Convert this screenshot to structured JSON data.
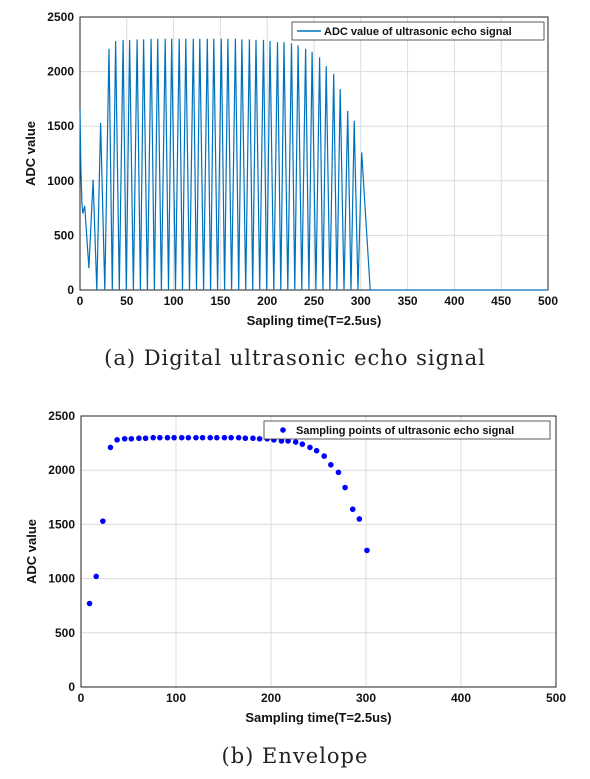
{
  "chart_data": [
    {
      "type": "line",
      "caption": "(a) Digital ultrasonic echo signal",
      "xlabel": "Sapling time(T=2.5us)",
      "ylabel": "ADC value",
      "xlim": [
        0,
        500
      ],
      "ylim": [
        0,
        2500
      ],
      "xticks": [
        0,
        50,
        100,
        150,
        200,
        250,
        300,
        350,
        400,
        450,
        500
      ],
      "yticks": [
        0,
        500,
        1000,
        1500,
        2000,
        2500
      ],
      "grid": true,
      "legend_position": "top-right",
      "series": [
        {
          "name": "ADC value of ultrasonic echo signal",
          "color": "#0072BD",
          "peaks_x": [
            5,
            14,
            22,
            31,
            38,
            46,
            53,
            61,
            68,
            76,
            83,
            91,
            98,
            106,
            113,
            121,
            128,
            136,
            143,
            151,
            158,
            166,
            173,
            181,
            188,
            196,
            203,
            211,
            218,
            226,
            233,
            241,
            248,
            256,
            263,
            271,
            278,
            286,
            293,
            301
          ],
          "peaks_y": [
            770,
            1010,
            1530,
            2210,
            2280,
            2290,
            2290,
            2295,
            2295,
            2300,
            2300,
            2300,
            2300,
            2300,
            2300,
            2300,
            2300,
            2300,
            2300,
            2300,
            2300,
            2300,
            2295,
            2295,
            2290,
            2290,
            2280,
            2270,
            2270,
            2260,
            2240,
            2210,
            2180,
            2130,
            2050,
            1980,
            1840,
            1640,
            1550,
            1260
          ],
          "end_x": 310
        }
      ]
    },
    {
      "type": "scatter",
      "caption": "(b) Envelope",
      "xlabel": "Sampling time(T=2.5us)",
      "ylabel": "ADC value",
      "xlim": [
        0,
        500
      ],
      "ylim": [
        0,
        2500
      ],
      "xticks": [
        0,
        100,
        200,
        300,
        400,
        500
      ],
      "yticks": [
        0,
        500,
        1000,
        1500,
        2000,
        2500
      ],
      "grid": true,
      "legend_position": "top-right",
      "series": [
        {
          "name": "Sampling points of ultrasonic echo signal",
          "color": "#0000FF",
          "x": [
            9,
            16,
            23,
            31,
            38,
            46,
            53,
            61,
            68,
            76,
            83,
            91,
            98,
            106,
            113,
            121,
            128,
            136,
            143,
            151,
            158,
            166,
            173,
            181,
            188,
            196,
            203,
            211,
            218,
            226,
            233,
            241,
            248,
            256,
            263,
            271,
            278,
            286,
            293,
            301
          ],
          "y": [
            770,
            1020,
            1530,
            2210,
            2280,
            2290,
            2290,
            2295,
            2295,
            2300,
            2300,
            2300,
            2300,
            2300,
            2300,
            2300,
            2300,
            2300,
            2300,
            2300,
            2300,
            2300,
            2295,
            2295,
            2290,
            2290,
            2280,
            2270,
            2270,
            2260,
            2240,
            2210,
            2180,
            2130,
            2050,
            1980,
            1840,
            1640,
            1550,
            1260
          ]
        }
      ]
    }
  ]
}
